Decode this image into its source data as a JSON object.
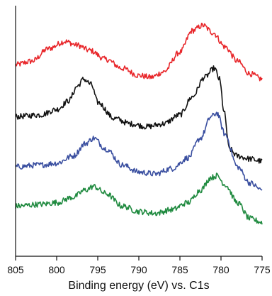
{
  "chart_data": {
    "type": "line",
    "title": "",
    "xlabel": "Binding energy (eV) vs. C1s",
    "ylabel": "",
    "x_reversed": true,
    "xlim": [
      805,
      775
    ],
    "x_ticks": [
      "805",
      "800",
      "795",
      "790",
      "785",
      "780",
      "775"
    ],
    "y_ticks": false,
    "grid": false,
    "legend": "none",
    "series": [
      {
        "color": "#e8262a",
        "x": [
          805,
          803,
          801,
          799,
          797.5,
          796,
          794,
          792,
          790,
          788.5,
          787,
          785,
          783.5,
          782.2,
          781,
          779.5,
          778,
          776.5,
          775
        ],
        "y": [
          5.35,
          5.45,
          5.8,
          6.0,
          5.9,
          5.75,
          5.5,
          5.25,
          5.05,
          5.0,
          5.15,
          5.7,
          6.3,
          6.45,
          6.25,
          5.85,
          5.45,
          5.1,
          4.95
        ]
      },
      {
        "color": "#111111",
        "x": [
          805,
          802,
          800,
          798.5,
          797.5,
          796.7,
          795.8,
          795,
          793,
          791,
          789,
          787,
          785,
          783.5,
          782,
          780.8,
          780.2,
          779.6,
          779,
          778,
          776.5,
          775
        ],
        "y": [
          3.9,
          3.95,
          4.1,
          4.35,
          4.75,
          4.95,
          4.8,
          4.3,
          3.85,
          3.7,
          3.62,
          3.7,
          3.95,
          4.45,
          5.0,
          5.25,
          4.95,
          4.0,
          3.0,
          2.8,
          2.72,
          2.65
        ]
      },
      {
        "color": "#3a4fa0",
        "x": [
          805,
          802,
          800,
          798,
          796.5,
          795.5,
          794,
          792,
          790,
          788,
          786,
          784,
          782.5,
          781.2,
          780.5,
          779.5,
          778,
          776.5,
          775
        ],
        "y": [
          2.5,
          2.55,
          2.6,
          2.8,
          3.15,
          3.3,
          3.0,
          2.55,
          2.35,
          2.3,
          2.45,
          2.75,
          3.3,
          3.9,
          4.0,
          3.4,
          2.5,
          2.05,
          1.85
        ]
      },
      {
        "color": "#1f8a3f",
        "x": [
          805,
          802,
          800,
          798,
          796.5,
          795.5,
          794,
          792,
          790,
          788,
          786,
          784,
          782.5,
          781.2,
          780.5,
          779.5,
          778,
          776.5,
          775
        ],
        "y": [
          1.4,
          1.45,
          1.5,
          1.65,
          1.85,
          1.95,
          1.75,
          1.4,
          1.25,
          1.2,
          1.3,
          1.5,
          1.85,
          2.2,
          2.25,
          2.0,
          1.5,
          1.05,
          0.95
        ]
      }
    ]
  }
}
